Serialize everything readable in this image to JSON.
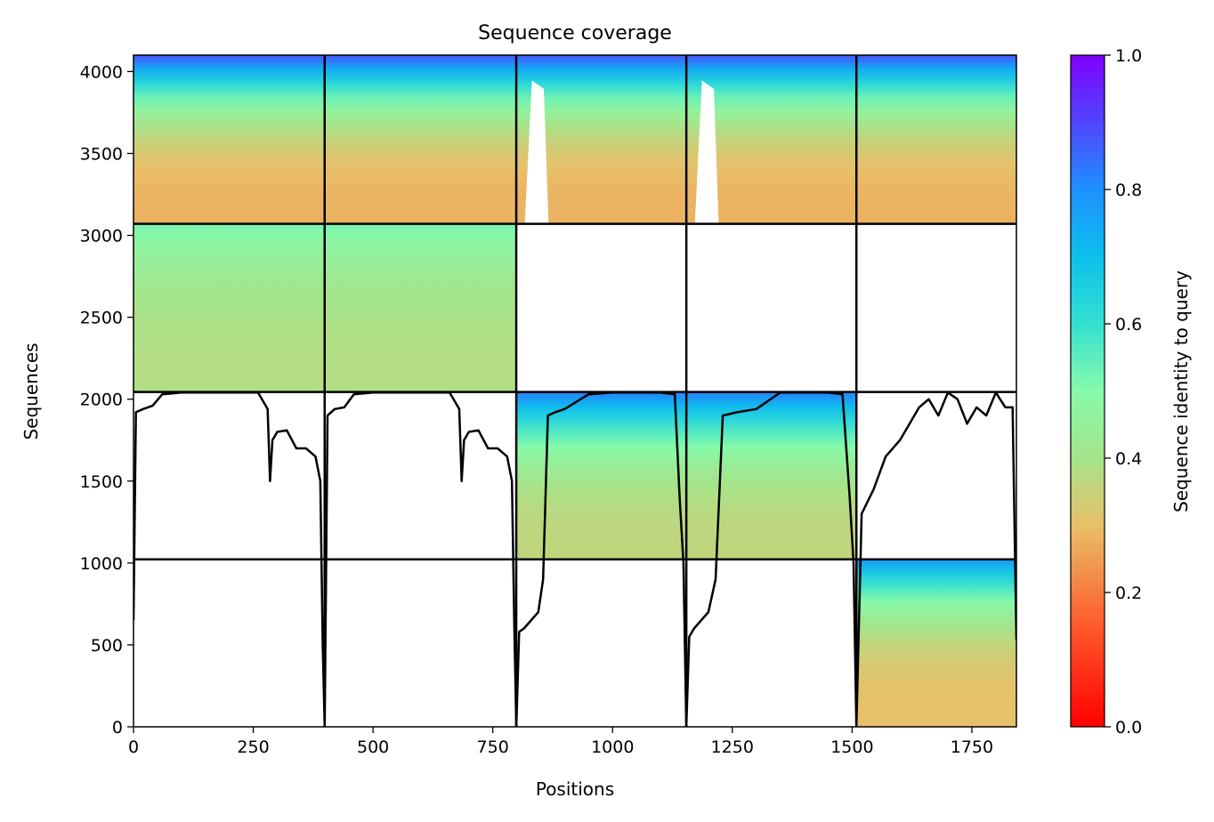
{
  "chart_data": {
    "type": "heatmap",
    "title": "Sequence coverage",
    "xlabel": "Positions",
    "ylabel": "Sequences",
    "xlim": [
      0,
      1843
    ],
    "ylim": [
      0,
      4100
    ],
    "xticks": [
      0,
      250,
      500,
      750,
      1000,
      1250,
      1500,
      1750
    ],
    "yticks": [
      0,
      500,
      1000,
      1500,
      2000,
      2500,
      3000,
      3500,
      4000
    ],
    "chain_boundaries_x": [
      0,
      399,
      799,
      1154,
      1509,
      1843
    ],
    "block_boundaries_y": [
      0,
      1022,
      2044,
      3070,
      4100
    ],
    "colorbar": {
      "label": "Sequence identity to query",
      "range": [
        0,
        1
      ],
      "ticks": [
        "0.0",
        "0.2",
        "0.4",
        "0.6",
        "0.8",
        "1.0"
      ],
      "colormap": "rainbow"
    },
    "coverage_blocks": [
      {
        "x0": 0,
        "x1": 399,
        "y0": 3070,
        "y1": 4100,
        "id_bottom": 0.28,
        "id_top": 0.88,
        "gap": false
      },
      {
        "x0": 399,
        "x1": 799,
        "y0": 3070,
        "y1": 4100,
        "id_bottom": 0.28,
        "id_top": 0.88,
        "gap": false
      },
      {
        "x0": 799,
        "x1": 1154,
        "y0": 3070,
        "y1": 4100,
        "id_bottom": 0.28,
        "id_top": 0.88,
        "gap": true
      },
      {
        "x0": 1154,
        "x1": 1509,
        "y0": 3070,
        "y1": 4100,
        "id_bottom": 0.28,
        "id_top": 0.88,
        "gap": true
      },
      {
        "x0": 1509,
        "x1": 1843,
        "y0": 3070,
        "y1": 4100,
        "id_bottom": 0.28,
        "id_top": 0.88,
        "gap": false
      },
      {
        "x0": 0,
        "x1": 399,
        "y0": 2044,
        "y1": 3070,
        "id_bottom": 0.38,
        "id_top": 0.52,
        "gap": false
      },
      {
        "x0": 399,
        "x1": 799,
        "y0": 2044,
        "y1": 3070,
        "id_bottom": 0.38,
        "id_top": 0.52,
        "gap": false
      },
      {
        "x0": 799,
        "x1": 1154,
        "y0": 1022,
        "y1": 2044,
        "id_bottom": 0.36,
        "id_top": 0.82,
        "gap": false
      },
      {
        "x0": 1154,
        "x1": 1509,
        "y0": 1022,
        "y1": 2044,
        "id_bottom": 0.36,
        "id_top": 0.82,
        "gap": false
      },
      {
        "x0": 1509,
        "x1": 1843,
        "y0": 0,
        "y1": 1022,
        "id_bottom": 0.3,
        "id_top": 0.78,
        "gap": false
      }
    ],
    "coverage_line": {
      "x": [
        0,
        5,
        20,
        40,
        60,
        100,
        150,
        200,
        260,
        280,
        285,
        290,
        300,
        320,
        340,
        360,
        380,
        390,
        395,
        399,
        405,
        420,
        440,
        460,
        500,
        560,
        620,
        660,
        680,
        685,
        690,
        700,
        720,
        740,
        760,
        780,
        790,
        795,
        799,
        805,
        815,
        830,
        845,
        855,
        865,
        880,
        900,
        950,
        1000,
        1050,
        1100,
        1130,
        1140,
        1148,
        1154,
        1160,
        1170,
        1185,
        1200,
        1215,
        1230,
        1260,
        1300,
        1350,
        1400,
        1450,
        1480,
        1495,
        1503,
        1509,
        1520,
        1545,
        1570,
        1600,
        1620,
        1640,
        1660,
        1680,
        1700,
        1720,
        1740,
        1760,
        1780,
        1800,
        1820,
        1835,
        1843
      ],
      "y": [
        650,
        1920,
        1940,
        1960,
        2030,
        2040,
        2040,
        2040,
        2040,
        1940,
        1500,
        1750,
        1800,
        1810,
        1700,
        1700,
        1650,
        1500,
        500,
        0,
        1900,
        1940,
        1950,
        2030,
        2040,
        2040,
        2040,
        2040,
        1940,
        1500,
        1750,
        1800,
        1810,
        1700,
        1700,
        1650,
        1500,
        600,
        0,
        580,
        600,
        650,
        700,
        900,
        1900,
        1920,
        1940,
        2030,
        2040,
        2040,
        2040,
        2030,
        1400,
        1000,
        0,
        550,
        600,
        650,
        700,
        900,
        1900,
        1920,
        1940,
        2040,
        2040,
        2040,
        2030,
        1400,
        1000,
        0,
        1300,
        1450,
        1650,
        1750,
        1850,
        1950,
        2000,
        1900,
        2040,
        2000,
        1850,
        1950,
        1900,
        2040,
        1950,
        1950,
        530
      ]
    }
  }
}
